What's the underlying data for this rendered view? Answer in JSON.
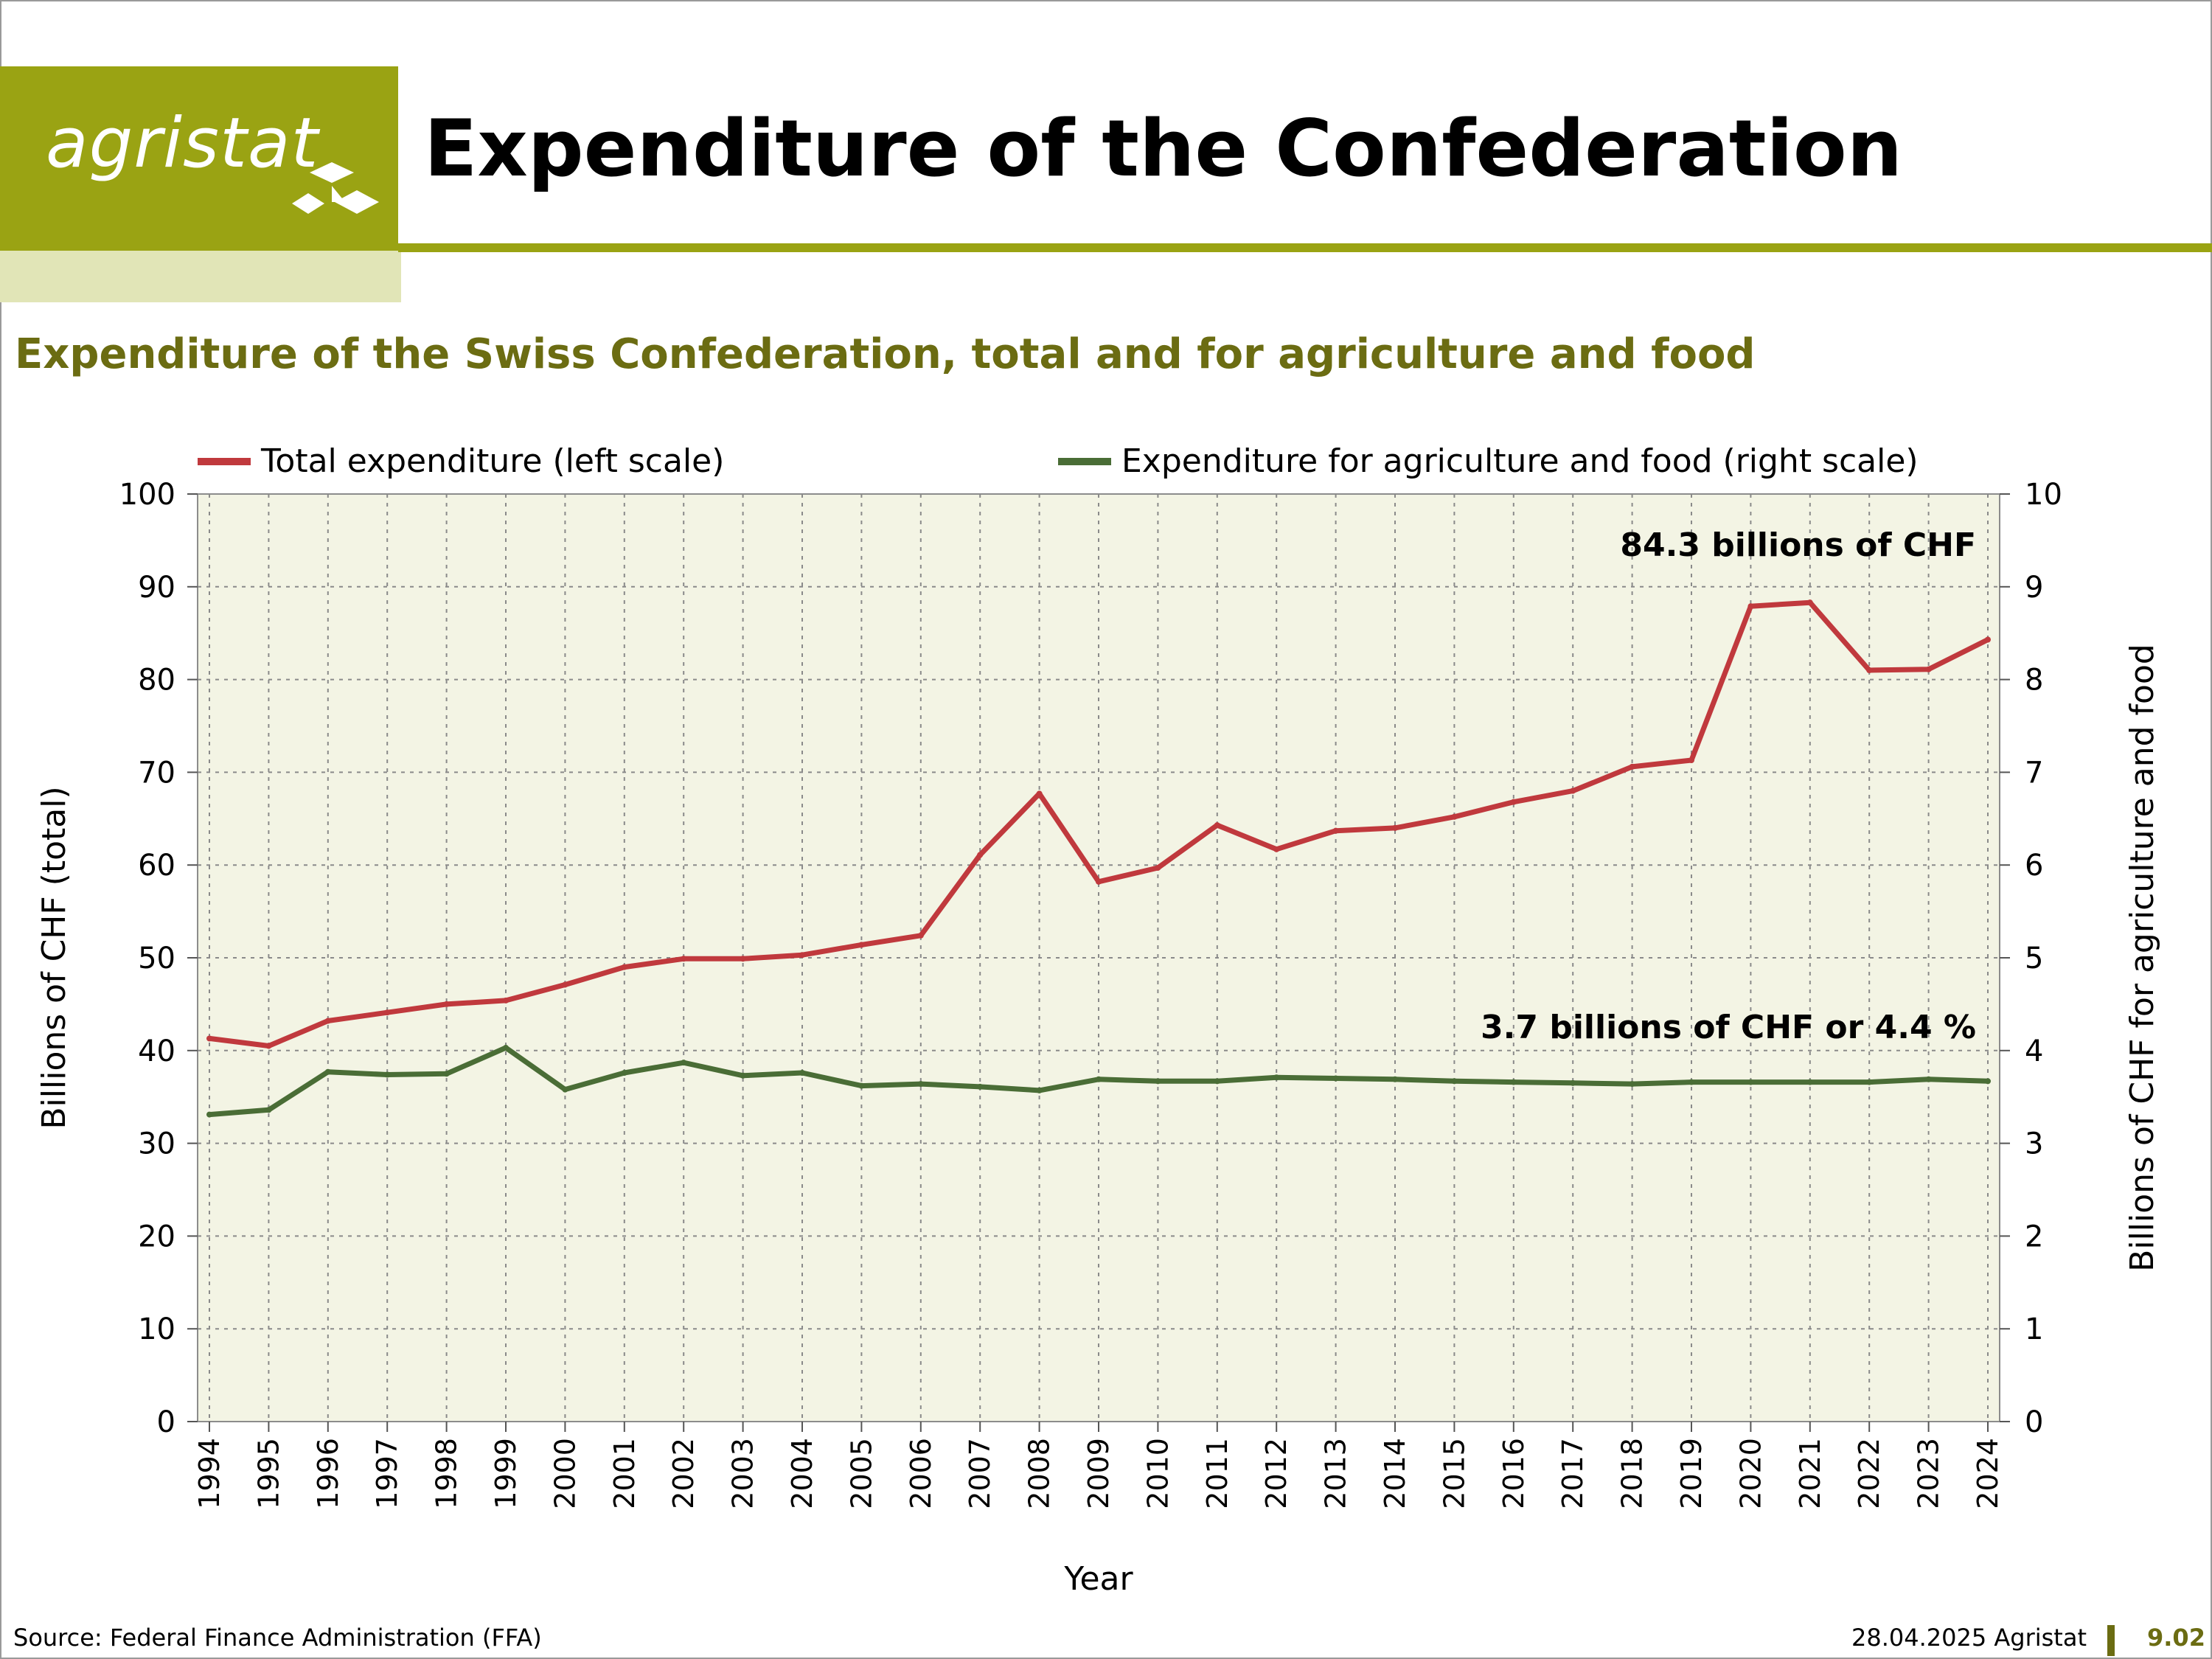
{
  "header": {
    "logo_text": "agristat",
    "title": "Expenditure of the Confederation"
  },
  "subtitle": "Expenditure of the Swiss Confederation, total and for agriculture and food",
  "footer": {
    "source": "Source: Federal Finance Administration (FFA)",
    "date": "28.04.2025 Agristat",
    "page_number": "9.02"
  },
  "colors": {
    "brand_green": "#9aa313",
    "plot_background": "#f3f4e4",
    "total_line": "#c0393d",
    "agri_line": "#4a6d36"
  },
  "chart_data": {
    "type": "line",
    "grid": true,
    "legend_position": "top",
    "xlabel": "Year",
    "ylabel_left": "Billions of CHF (total)",
    "ylabel_right": "Billions of CHF for agriculture and food",
    "ylim_left": [
      0,
      100
    ],
    "ylim_right": [
      0,
      10
    ],
    "yticks_left": [
      0,
      10,
      20,
      30,
      40,
      50,
      60,
      70,
      80,
      90,
      100
    ],
    "yticks_right": [
      0,
      1,
      2,
      3,
      4,
      5,
      6,
      7,
      8,
      9,
      10
    ],
    "x": [
      1994,
      1995,
      1996,
      1997,
      1998,
      1999,
      2000,
      2001,
      2002,
      2003,
      2004,
      2005,
      2006,
      2007,
      2008,
      2009,
      2010,
      2011,
      2012,
      2013,
      2014,
      2015,
      2016,
      2017,
      2018,
      2019,
      2020,
      2021,
      2022,
      2023,
      2024
    ],
    "series": [
      {
        "name": "Total expenditure (left scale)",
        "axis": "left",
        "color": "#c0393d",
        "values": [
          41.3,
          40.5,
          43.2,
          44.1,
          45.0,
          45.4,
          47.1,
          49.0,
          49.9,
          49.9,
          50.3,
          51.4,
          52.4,
          61.1,
          67.7,
          58.2,
          59.7,
          64.3,
          61.7,
          63.7,
          64.0,
          65.2,
          66.8,
          68.0,
          70.6,
          71.3,
          87.9,
          88.3,
          81.0,
          81.1,
          84.3
        ]
      },
      {
        "name": "Expenditure for agriculture and food (right scale)",
        "axis": "right",
        "color": "#4a6d36",
        "values": [
          3.31,
          3.36,
          3.77,
          3.74,
          3.75,
          4.03,
          3.58,
          3.76,
          3.87,
          3.73,
          3.76,
          3.62,
          3.64,
          3.61,
          3.57,
          3.69,
          3.67,
          3.67,
          3.71,
          3.7,
          3.69,
          3.67,
          3.66,
          3.65,
          3.64,
          3.66,
          3.66,
          3.66,
          3.66,
          3.69,
          3.67
        ]
      }
    ],
    "annotations": [
      {
        "text": "84.3 billions of CHF",
        "series": 0
      },
      {
        "text": "3.7 billions of CHF or 4.4 %",
        "series": 1
      }
    ]
  }
}
